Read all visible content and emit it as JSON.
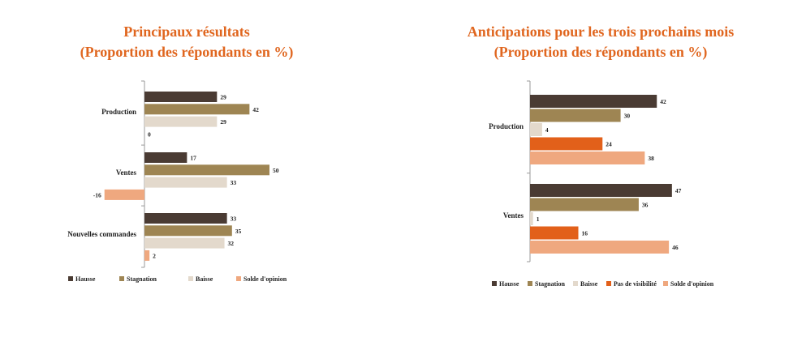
{
  "chart_data": [
    {
      "type": "bar",
      "orientation": "horizontal",
      "title": "Principaux résultats",
      "subtitle": "(Proportion des répondants en %)",
      "categories": [
        "Production",
        "Ventes",
        "Nouvelles commandes"
      ],
      "series": [
        {
          "name": "Hausse",
          "color": "#4A3B33",
          "values": [
            29,
            17,
            33
          ]
        },
        {
          "name": "Stagnation",
          "color": "#9E8553",
          "values": [
            42,
            50,
            35
          ]
        },
        {
          "name": "Baisse",
          "color": "#E3D9CC",
          "values": [
            29,
            33,
            32
          ]
        },
        {
          "name": "Solde d'opinion",
          "color": "#EFA87F",
          "values": [
            0,
            -16,
            2
          ]
        }
      ],
      "xlim": [
        -18,
        55
      ],
      "legend": "bottom",
      "grid": false
    },
    {
      "type": "bar",
      "orientation": "horizontal",
      "title": "Anticipations pour les trois prochains mois",
      "subtitle": "(Proportion des répondants en %)",
      "categories": [
        "Production",
        "Ventes"
      ],
      "series": [
        {
          "name": "Hausse",
          "color": "#4A3B33",
          "values": [
            42,
            47
          ]
        },
        {
          "name": "Stagnation",
          "color": "#9E8553",
          "values": [
            30,
            36
          ]
        },
        {
          "name": "Baisse",
          "color": "#E3D9CC",
          "values": [
            4,
            1
          ]
        },
        {
          "name": "Pas de visibilité",
          "color": "#E2601A",
          "values": [
            24,
            16
          ]
        },
        {
          "name": "Solde d'opinion",
          "color": "#EFA87F",
          "values": [
            38,
            46
          ]
        }
      ],
      "xlim": [
        0,
        50
      ],
      "legend": "bottom",
      "grid": false
    }
  ]
}
